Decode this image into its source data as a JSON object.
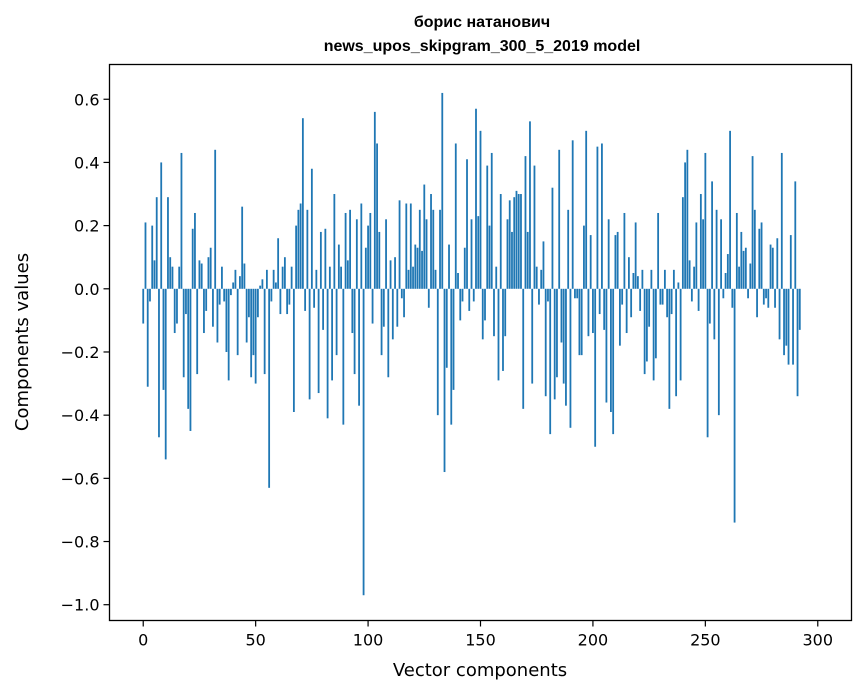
{
  "chart_data": {
    "type": "bar",
    "title": "борис натанович",
    "subtitle": "news_upos_skipgram_300_5_2019 model",
    "xlabel": "Vector components",
    "ylabel": "Components values",
    "xlim": [
      -15,
      315
    ],
    "ylim": [
      -1.05,
      0.71
    ],
    "xticks": [
      0,
      50,
      100,
      150,
      200,
      250,
      300
    ],
    "yticks": [
      0.6,
      0.4,
      0.2,
      0.0,
      -0.2,
      -0.4,
      -0.6,
      -0.8,
      -1.0
    ],
    "xtick_labels": [
      "0",
      "50",
      "100",
      "150",
      "200",
      "250",
      "300"
    ],
    "ytick_labels": [
      "0.6",
      "0.4",
      "0.2",
      "0.0",
      "−0.2",
      "−0.4",
      "−0.6",
      "−0.8",
      "−1.0"
    ],
    "bar_color": "#1f77b4",
    "series": [
      {
        "name": "components",
        "values": [
          -0.11,
          0.21,
          -0.31,
          -0.04,
          0.2,
          0.09,
          0.29,
          -0.47,
          0.4,
          -0.32,
          -0.54,
          0.29,
          0.1,
          0.07,
          -0.14,
          -0.11,
          0.07,
          0.43,
          -0.28,
          -0.08,
          -0.38,
          -0.45,
          0.19,
          0.24,
          -0.27,
          0.09,
          0.08,
          -0.14,
          -0.07,
          0.1,
          0.13,
          -0.12,
          0.44,
          -0.17,
          -0.05,
          0.07,
          -0.04,
          -0.2,
          -0.29,
          -0.02,
          0.02,
          0.06,
          -0.21,
          0.04,
          0.26,
          0.08,
          -0.17,
          -0.09,
          -0.28,
          -0.21,
          -0.3,
          -0.09,
          0.01,
          0.03,
          -0.27,
          0.06,
          -0.63,
          -0.04,
          0.06,
          0.02,
          0.16,
          -0.08,
          0.07,
          0.1,
          -0.08,
          -0.05,
          0.07,
          -0.39,
          0.2,
          0.25,
          0.27,
          0.54,
          -0.07,
          0.25,
          -0.35,
          0.38,
          -0.06,
          0.06,
          -0.33,
          0.18,
          -0.13,
          0.19,
          -0.41,
          0.07,
          -0.29,
          0.3,
          -0.21,
          0.14,
          0.07,
          -0.43,
          0.24,
          0.09,
          0.25,
          -0.14,
          -0.27,
          0.22,
          -0.37,
          0.27,
          -0.97,
          0.13,
          0.2,
          0.24,
          -0.11,
          0.56,
          0.46,
          0.18,
          -0.21,
          -0.12,
          0.22,
          -0.28,
          0.09,
          -0.16,
          0.1,
          -0.12,
          0.28,
          -0.03,
          -0.09,
          0.27,
          0.06,
          0.27,
          0.07,
          0.14,
          0.13,
          0.25,
          0.12,
          0.33,
          0.22,
          -0.06,
          0.3,
          0.25,
          0.06,
          -0.4,
          0.25,
          0.62,
          -0.58,
          -0.25,
          0.14,
          -0.43,
          -0.32,
          0.46,
          0.05,
          -0.1,
          -0.04,
          0.13,
          0.41,
          -0.07,
          0.22,
          -0.04,
          0.57,
          0.23,
          0.5,
          -0.16,
          -0.1,
          0.39,
          0.2,
          0.43,
          -0.15,
          0.07,
          -0.29,
          0.3,
          -0.26,
          -0.15,
          0.22,
          0.28,
          0.18,
          0.29,
          0.31,
          0.3,
          0.3,
          -0.38,
          0.42,
          0.18,
          0.53,
          -0.3,
          0.39,
          0.07,
          -0.05,
          0.06,
          0.15,
          -0.34,
          -0.04,
          -0.46,
          0.32,
          -0.35,
          -0.28,
          0.44,
          -0.17,
          -0.3,
          -0.37,
          0.25,
          -0.44,
          0.47,
          -0.03,
          -0.03,
          -0.21,
          -0.21,
          0.2,
          0.5,
          -0.15,
          0.17,
          -0.14,
          -0.5,
          0.45,
          -0.08,
          0.46,
          -0.13,
          -0.36,
          0.22,
          -0.39,
          -0.46,
          0.17,
          0.18,
          -0.18,
          -0.05,
          0.24,
          -0.14,
          0.1,
          -0.09,
          0.05,
          0.21,
          0.04,
          -0.07,
          0.06,
          -0.27,
          -0.23,
          -0.12,
          0.06,
          -0.29,
          -0.22,
          0.24,
          -0.05,
          -0.05,
          0.06,
          -0.09,
          -0.38,
          -0.08,
          0.06,
          -0.34,
          0.02,
          -0.29,
          0.29,
          0.4,
          0.44,
          0.09,
          -0.04,
          0.07,
          0.21,
          -0.07,
          0.3,
          0.22,
          0.43,
          -0.47,
          -0.11,
          0.34,
          -0.16,
          0.25,
          -0.4,
          0.22,
          -0.03,
          0.05,
          0.11,
          0.5,
          -0.06,
          -0.74,
          0.24,
          0.07,
          0.18,
          0.12,
          0.13,
          -0.03,
          0.08,
          0.42,
          0.25,
          -0.09,
          0.19,
          0.21,
          -0.05,
          -0.03,
          -0.06,
          0.14,
          0.13,
          -0.06,
          0.16,
          -0.16,
          0.43,
          -0.21,
          -0.18,
          -0.24,
          0.17,
          -0.24,
          0.34,
          -0.34,
          -0.13
        ]
      }
    ]
  }
}
